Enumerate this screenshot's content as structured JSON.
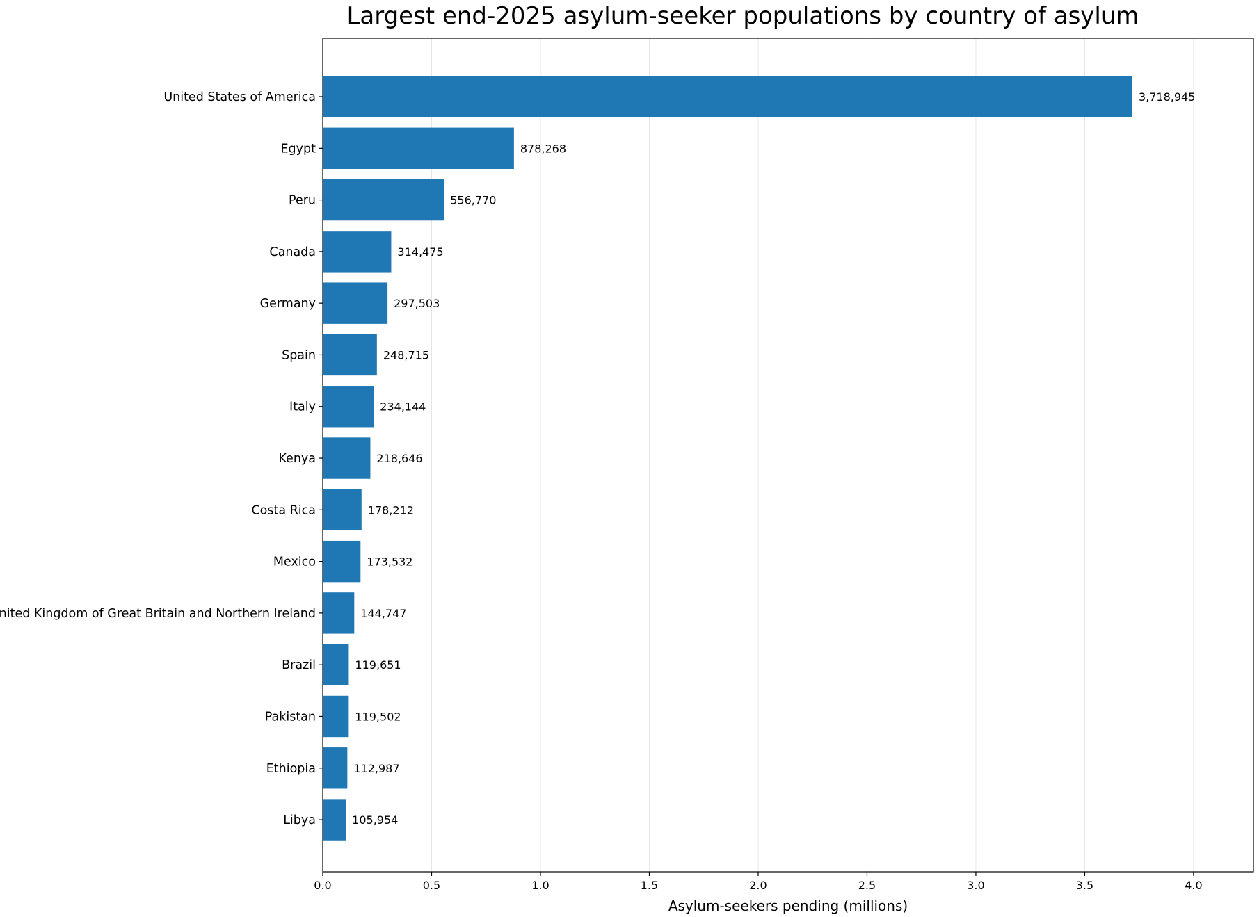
{
  "chart_data": {
    "type": "bar",
    "orientation": "horizontal",
    "title": "Largest end-2025 asylum-seeker populations by country of asylum",
    "xlabel": "Asylum-seekers pending (millions)",
    "ylabel": "",
    "xlim": [
      0,
      4.275
    ],
    "xticks": [
      0.0,
      0.5,
      1.0,
      1.5,
      2.0,
      2.5,
      3.0,
      3.5,
      4.0
    ],
    "xtick_labels": [
      "0.0",
      "0.5",
      "1.0",
      "1.5",
      "2.0",
      "2.5",
      "3.0",
      "3.5",
      "4.0"
    ],
    "grid": "vertical",
    "bar_color": "#1f77b4",
    "categories": [
      "United States of America",
      "Egypt",
      "Peru",
      "Canada",
      "Germany",
      "Spain",
      "Italy",
      "Kenya",
      "Costa Rica",
      "Mexico",
      "United Kingdom of Great Britain and Northern Ireland",
      "Brazil",
      "Pakistan",
      "Ethiopia",
      "Libya"
    ],
    "values": [
      3718945,
      878268,
      556770,
      314475,
      297503,
      248715,
      234144,
      218646,
      178212,
      173532,
      144747,
      119651,
      119502,
      112987,
      105954
    ],
    "value_labels": [
      "3,718,945",
      "878,268",
      "556,770",
      "314,475",
      "297,503",
      "248,715",
      "234,144",
      "218,646",
      "178,212",
      "173,532",
      "144,747",
      "119,651",
      "119,502",
      "112,987",
      "105,954"
    ]
  }
}
